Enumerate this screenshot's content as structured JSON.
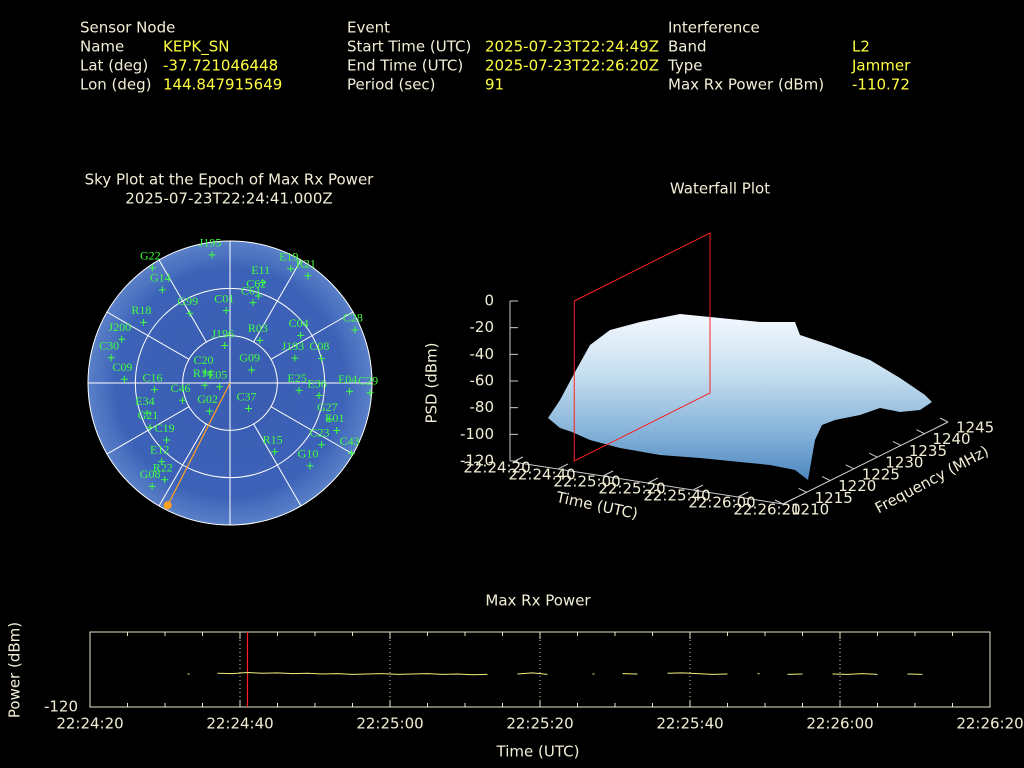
{
  "header": {
    "sections": [
      {
        "title": "Sensor Node",
        "fields": [
          {
            "label": "Name",
            "value": "KEPK_SN"
          },
          {
            "label": "Lat (deg)",
            "value": "-37.721046448"
          },
          {
            "label": "Lon (deg)",
            "value": "144.847915649"
          }
        ]
      },
      {
        "title": "Event",
        "fields": [
          {
            "label": "Start Time (UTC)",
            "value": "2025-07-23T22:24:49Z"
          },
          {
            "label": "End Time (UTC)",
            "value": "2025-07-23T22:26:20Z"
          },
          {
            "label": "Period (sec)",
            "value": "91"
          }
        ]
      },
      {
        "title": "Interference",
        "fields": [
          {
            "label": "Band",
            "value": "L2"
          },
          {
            "label": "Type",
            "value": "Jammer"
          },
          {
            "label": "Max Rx Power (dBm)",
            "value": "-110.72"
          }
        ]
      }
    ]
  },
  "chart_data": [
    {
      "type": "sky",
      "title": "Sky Plot at the Epoch of Max Rx Power",
      "subtitle": "2025-07-23T22:24:41.000Z",
      "rticks": [
        0,
        30,
        60
      ],
      "azticks": [
        0,
        30,
        60,
        90,
        120,
        150,
        180,
        210,
        240,
        270,
        300,
        330
      ],
      "color": "#40ff40",
      "satellites": [
        {
          "name": "G22",
          "az": 326,
          "el": 2
        },
        {
          "name": "J195",
          "az": 352,
          "el": 8
        },
        {
          "name": "E19",
          "az": 28,
          "el": 8
        },
        {
          "name": "R21",
          "az": 36,
          "el": 6
        },
        {
          "name": "G14",
          "az": 324,
          "el": 17
        },
        {
          "name": "E11",
          "az": 18,
          "el": 23
        },
        {
          "name": "C62",
          "az": 18,
          "el": 32
        },
        {
          "name": "C61",
          "az": 16,
          "el": 37
        },
        {
          "name": "C01",
          "az": 357,
          "el": 44
        },
        {
          "name": "G99",
          "az": 330,
          "el": 39
        },
        {
          "name": "R18",
          "az": 305,
          "el": 23
        },
        {
          "name": "C28",
          "az": 67,
          "el": 4
        },
        {
          "name": "C04",
          "az": 56,
          "el": 36
        },
        {
          "name": "J200",
          "az": 292,
          "el": 16
        },
        {
          "name": "J196",
          "az": 352,
          "el": 66
        },
        {
          "name": "R03",
          "az": 35,
          "el": 57
        },
        {
          "name": "J193",
          "az": 69,
          "el": 46
        },
        {
          "name": "C08",
          "az": 75,
          "el": 30
        },
        {
          "name": "C09",
          "az": 272,
          "el": 23
        },
        {
          "name": "C30",
          "az": 282,
          "el": 13
        },
        {
          "name": "C20",
          "az": 294,
          "el": 73
        },
        {
          "name": "G09",
          "az": 59,
          "el": 74
        },
        {
          "name": "R14",
          "az": 265,
          "el": 74
        },
        {
          "name": "E05",
          "az": 250,
          "el": 83
        },
        {
          "name": "E25",
          "az": 96,
          "el": 46
        },
        {
          "name": "E36",
          "az": 98,
          "el": 33
        },
        {
          "name": "E04",
          "az": 94,
          "el": 14
        },
        {
          "name": "C29",
          "az": 94,
          "el": 1
        },
        {
          "name": "C16",
          "az": 265,
          "el": 42
        },
        {
          "name": "C46",
          "az": 250,
          "el": 58
        },
        {
          "name": "E34",
          "az": 250,
          "el": 34
        },
        {
          "name": "G27",
          "az": 110,
          "el": 23
        },
        {
          "name": "E01",
          "az": 114,
          "el": 16
        },
        {
          "name": "C23",
          "az": 124,
          "el": 20
        },
        {
          "name": "C43",
          "az": 120,
          "el": 1
        },
        {
          "name": "G21",
          "az": 241,
          "el": 32
        },
        {
          "name": "C19",
          "az": 228,
          "el": 36
        },
        {
          "name": "C37",
          "az": 144,
          "el": 70
        },
        {
          "name": "G02",
          "az": 216,
          "el": 68
        },
        {
          "name": "R15",
          "az": 147,
          "el": 38
        },
        {
          "name": "G10",
          "az": 136,
          "el": 17
        },
        {
          "name": "E12",
          "az": 221,
          "el": 24
        },
        {
          "name": "R22",
          "az": 214,
          "el": 16
        },
        {
          "name": "G08",
          "az": 217,
          "el": 8
        }
      ],
      "interference_direction": {
        "az": 207,
        "el": 3,
        "color": "#ffa020"
      }
    },
    {
      "type": "surface",
      "title": "Waterfall Plot",
      "xlabel": "Time (UTC)",
      "ylabel": "Frequency (MHz)",
      "zlabel": "PSD (dBm)",
      "xlim": [
        "22:24:20",
        "22:26:20"
      ],
      "xticks": [
        "22:24:20",
        "22:24:40",
        "22:25:00",
        "22:25:20",
        "22:25:40",
        "22:26:00",
        "22:26:20"
      ],
      "ylim": [
        1210,
        1245
      ],
      "yticks": [
        1210,
        1215,
        1220,
        1225,
        1230,
        1235,
        1240,
        1245
      ],
      "zlim": [
        -120,
        0
      ],
      "zticks": [
        -120,
        -100,
        -80,
        -60,
        -40,
        -20,
        0
      ],
      "marker_x": "22:24:41",
      "marker_color": "#ff2020"
    },
    {
      "type": "line",
      "title": "Max Rx Power",
      "xlabel": "Time (UTC)",
      "ylabel": "Power (dBm)",
      "xlim": [
        "22:24:20",
        "22:26:20"
      ],
      "xticks": [
        "22:24:20",
        "22:24:40",
        "22:25:00",
        "22:25:20",
        "22:25:40",
        "22:26:00",
        "22:26:20"
      ],
      "ylim": [
        -120,
        -100
      ],
      "yticks": [
        -120
      ],
      "grid": true,
      "marker_x": "22:24:41",
      "marker_color": "#ff2020",
      "color": "#f0f080",
      "x": [
        "22:24:33",
        "22:24:35",
        "22:24:37",
        "22:24:39",
        "22:24:41",
        "22:24:43",
        "22:24:45",
        "22:24:47",
        "22:24:49",
        "22:24:51",
        "22:24:53",
        "22:24:55",
        "22:24:57",
        "22:24:59",
        "22:25:01",
        "22:25:03",
        "22:25:05",
        "22:25:07",
        "22:25:09",
        "22:25:11",
        "22:25:13",
        "22:25:15",
        "22:25:17",
        "22:25:19",
        "22:25:21",
        "22:25:23",
        "22:25:25",
        "22:25:27",
        "22:25:29",
        "22:25:31",
        "22:25:33",
        "22:25:35",
        "22:25:37",
        "22:25:39",
        "22:25:41",
        "22:25:43",
        "22:25:45",
        "22:25:47",
        "22:25:49",
        "22:25:51",
        "22:25:53",
        "22:25:55",
        "22:25:57",
        "22:25:59",
        "22:26:01",
        "22:26:03",
        "22:26:05",
        "22:26:07",
        "22:26:09",
        "22:26:11"
      ],
      "values": [
        -111.2,
        null,
        -111.0,
        -111.1,
        -110.8,
        -111.0,
        -110.9,
        -111.1,
        -111.0,
        -111.2,
        -111.1,
        -111.3,
        -111.2,
        -111.1,
        -111.3,
        -111.2,
        -111.1,
        -111.3,
        -111.2,
        -111.4,
        -111.3,
        null,
        -111.2,
        -110.9,
        -111.3,
        null,
        null,
        -111.2,
        null,
        -111.1,
        -111.2,
        null,
        -111.0,
        -110.9,
        -111.1,
        -111.3,
        -111.2,
        null,
        -111.1,
        null,
        -111.3,
        -111.2,
        null,
        -111.2,
        -111.3,
        -111.1,
        -111.3,
        null,
        -111.2,
        -111.3
      ]
    }
  ]
}
